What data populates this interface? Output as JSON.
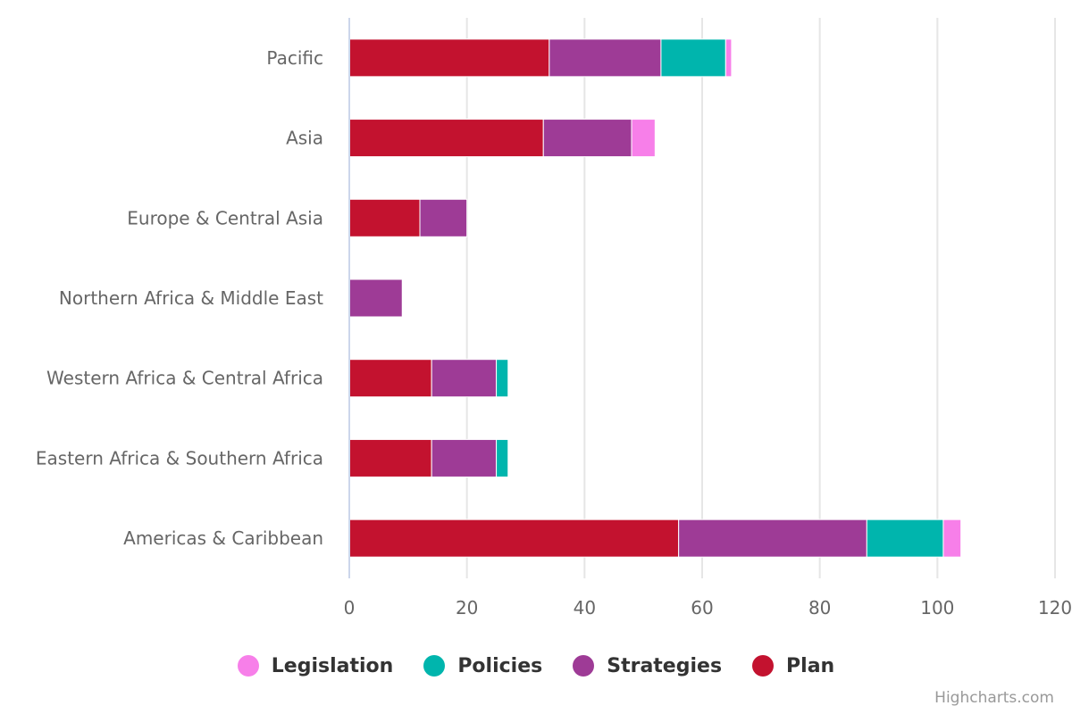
{
  "chart_data": {
    "type": "bar",
    "stacked": true,
    "orientation": "horizontal",
    "categories": [
      "Pacific",
      "Asia",
      "Europe & Central Asia",
      "Northern Africa & Middle East",
      "Western Africa & Central Africa",
      "Eastern Africa & Southern Africa",
      "Americas & Caribbean"
    ],
    "series": [
      {
        "name": "Legislation",
        "color": "#f77fe9",
        "values": [
          1,
          4,
          0,
          0,
          0,
          0,
          3
        ]
      },
      {
        "name": "Policies",
        "color": "#00b5ad",
        "values": [
          11,
          0,
          0,
          0,
          2,
          2,
          13
        ]
      },
      {
        "name": "Strategies",
        "color": "#9e3b96",
        "values": [
          19,
          15,
          8,
          9,
          11,
          11,
          32
        ]
      },
      {
        "name": "Plan",
        "color": "#c3122f",
        "values": [
          34,
          33,
          12,
          0,
          14,
          14,
          56
        ]
      }
    ],
    "stack_order": [
      "Plan",
      "Strategies",
      "Policies",
      "Legislation"
    ],
    "xlim": [
      0,
      120
    ],
    "xticks": [
      0,
      20,
      40,
      60,
      80,
      100,
      120
    ],
    "grid": true,
    "legend_position": "bottom-center"
  },
  "credits": "Highcharts.com"
}
